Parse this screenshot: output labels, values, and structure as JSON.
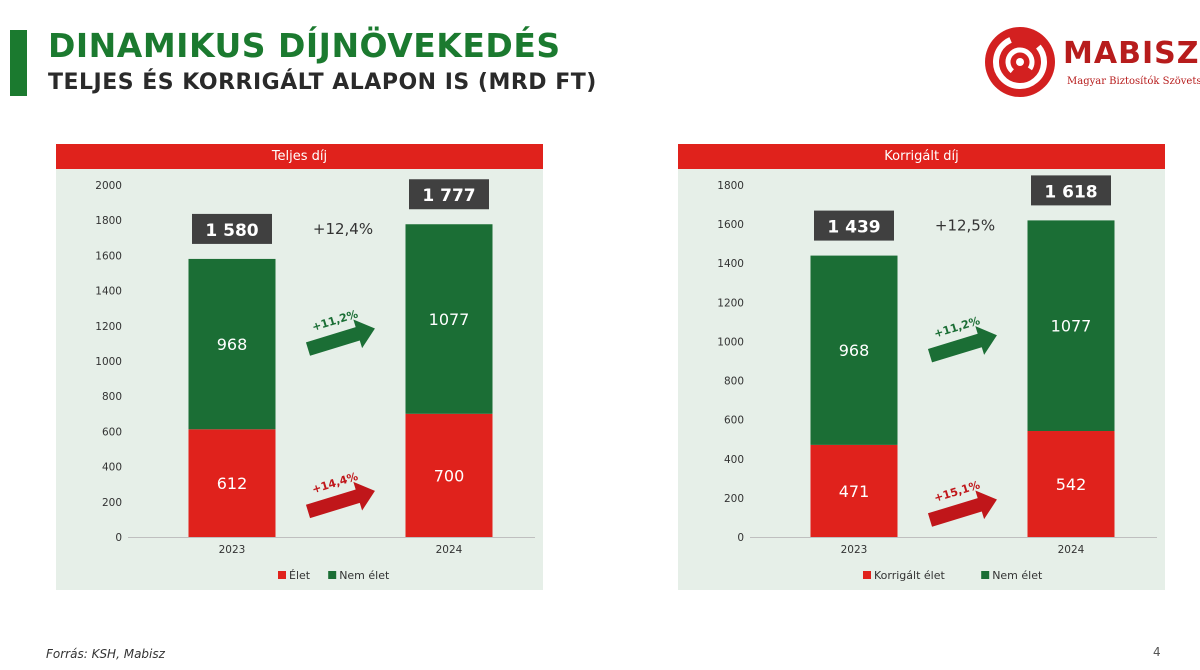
{
  "header": {
    "title": "DINAMIKUS DÍJNÖVEKEDÉS",
    "subtitle": "TELJES ÉS KORRIGÁLT ALAPON IS (MRD FT)"
  },
  "logo": {
    "name": "MABISZ",
    "tagline": "Magyar Biztosítók Szövetsége"
  },
  "footer": {
    "source": "Forrás: KSH, Mabisz",
    "page_number": "4"
  },
  "colors": {
    "green": "#1b6e35",
    "red": "#e0221c",
    "arrow_green": "#1b6e35",
    "arrow_red": "#c0161a",
    "total_box": "#404040"
  },
  "chart_data": [
    {
      "type": "bar",
      "stacked": true,
      "title": "Teljes díj",
      "categories": [
        "2023",
        "2024"
      ],
      "series": [
        {
          "name": "Élet",
          "values": [
            612,
            700
          ],
          "color": "#e0221c",
          "labels": [
            "612",
            "700"
          ]
        },
        {
          "name": "Nem élet",
          "values": [
            968,
            1077
          ],
          "color": "#1b6e35",
          "labels": [
            "968",
            "1077"
          ]
        }
      ],
      "totals": [
        "1 580",
        "1 777"
      ],
      "growth_total": "+12,4%",
      "growth_series": {
        "Nem élet": "+11,2%",
        "Élet": "+14,4%"
      },
      "ylim": [
        0,
        2000
      ],
      "yticks": [
        0,
        200,
        400,
        600,
        800,
        1000,
        1200,
        1400,
        1600,
        1800,
        2000
      ],
      "legend": "bottom"
    },
    {
      "type": "bar",
      "stacked": true,
      "title": "Korrigált díj",
      "categories": [
        "2023",
        "2024"
      ],
      "series": [
        {
          "name": "Korrigált élet",
          "values": [
            471,
            542
          ],
          "color": "#e0221c",
          "labels": [
            "471",
            "542"
          ]
        },
        {
          "name": "Nem élet",
          "values": [
            968,
            1077
          ],
          "color": "#1b6e35",
          "labels": [
            "968",
            "1077"
          ]
        }
      ],
      "totals": [
        "1 439",
        "1 618"
      ],
      "growth_total": "+12,5%",
      "growth_series": {
        "Nem élet": "+11,2%",
        "Korrigált élet": "+15,1%"
      },
      "ylim": [
        0,
        1800
      ],
      "yticks": [
        0,
        200,
        400,
        600,
        800,
        1000,
        1200,
        1400,
        1600,
        1800
      ],
      "legend": "bottom"
    }
  ]
}
